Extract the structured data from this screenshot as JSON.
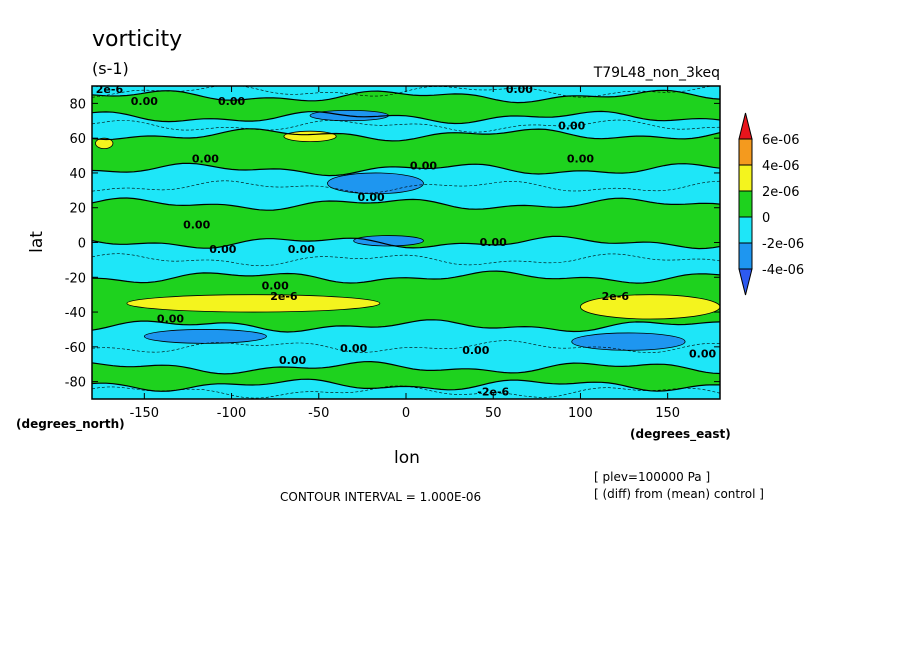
{
  "chart_data": {
    "type": "heatmap",
    "title": "vorticity",
    "units": "(s-1)",
    "experiment": "T79L48_non_3keq",
    "xlabel": "lon",
    "ylabel": "lat",
    "x_units": "(degrees_east)",
    "y_units": "(degrees_north)",
    "xlim": [
      -180,
      180
    ],
    "ylim": [
      -90,
      90
    ],
    "x_ticks": [
      -150,
      -100,
      -50,
      0,
      50,
      100,
      150
    ],
    "y_ticks": [
      80,
      60,
      40,
      20,
      0,
      -20,
      -40,
      -60,
      -80
    ],
    "contour_interval_text": "CONTOUR INTERVAL = 1.000E-06",
    "level_text": "[ plev=100000 Pa ]",
    "diff_text": "[ (diff) from (mean) control ]",
    "colorbar": {
      "labels": [
        "6e-06",
        "4e-06",
        "2e-06",
        "0",
        "-2e-06",
        "-4e-06"
      ],
      "colors": [
        "#e8141c",
        "#f49a1e",
        "#f4f41e",
        "#1ed21e",
        "#1ee6f8",
        "#1e96f0",
        "#2d5af0"
      ]
    },
    "zonal_bands": [
      {
        "lat_min": 84,
        "lat_max": 90,
        "class": "negative",
        "color": "#1ee6f8"
      },
      {
        "lat_min": 72,
        "lat_max": 84,
        "class": "positive",
        "color": "#1ed21e"
      },
      {
        "lat_min": 62,
        "lat_max": 72,
        "class": "negative",
        "color": "#1ee6f8"
      },
      {
        "lat_min": 42,
        "lat_max": 62,
        "class": "positive",
        "color": "#1ed21e"
      },
      {
        "lat_min": 22,
        "lat_max": 42,
        "class": "negative",
        "color": "#1ee6f8"
      },
      {
        "lat_min": 0,
        "lat_max": 22,
        "class": "positive",
        "color": "#1ed21e"
      },
      {
        "lat_min": -20,
        "lat_max": 0,
        "class": "negative",
        "color": "#1ee6f8"
      },
      {
        "lat_min": -48,
        "lat_max": -20,
        "class": "positive",
        "color": "#1ed21e"
      },
      {
        "lat_min": -72,
        "lat_max": -48,
        "class": "negative",
        "color": "#1ee6f8"
      },
      {
        "lat_min": -82,
        "lat_max": -72,
        "class": "positive",
        "color": "#1ed21e"
      },
      {
        "lat_min": -90,
        "lat_max": -82,
        "class": "negative",
        "color": "#1ee6f8"
      }
    ],
    "anomalies": [
      {
        "lon_min": -45,
        "lon_max": 10,
        "lat_min": 28,
        "lat_max": 40,
        "value": "-4e-06",
        "color": "#1e96f0"
      },
      {
        "lon_min": -30,
        "lon_max": 10,
        "lat_min": -2,
        "lat_max": 4,
        "value": "-4e-06",
        "color": "#1e96f0"
      },
      {
        "lon_min": -150,
        "lon_max": -80,
        "lat_min": -58,
        "lat_max": -50,
        "value": "-4e-06",
        "color": "#1e96f0"
      },
      {
        "lon_min": 95,
        "lon_max": 160,
        "lat_min": -62,
        "lat_max": -52,
        "value": "-4e-06",
        "color": "#1e96f0"
      },
      {
        "lon_min": -55,
        "lon_max": -10,
        "lat_min": 70,
        "lat_max": 76,
        "value": "-4e-06",
        "color": "#1e96f0"
      },
      {
        "lon_min": -160,
        "lon_max": -15,
        "lat_min": -40,
        "lat_max": -30,
        "value": "2e-06",
        "color": "#f4f41e"
      },
      {
        "lon_min": 100,
        "lon_max": 180,
        "lat_min": -44,
        "lat_max": -30,
        "value": "2e-06",
        "color": "#f4f41e"
      },
      {
        "lon_min": -178,
        "lon_max": -168,
        "lat_min": 54,
        "lat_max": 60,
        "value": "2e-06",
        "color": "#f4f41e"
      },
      {
        "lon_min": -70,
        "lon_max": -40,
        "lat_min": 58,
        "lat_max": 64,
        "value": "2e-06",
        "color": "#f4f41e"
      }
    ],
    "contour_labels": [
      {
        "text": "2e-6",
        "lon": -170,
        "lat": 86
      },
      {
        "text": "0.00",
        "lon": -150,
        "lat": 79
      },
      {
        "text": "0.00",
        "lon": -100,
        "lat": 79
      },
      {
        "text": "0.00",
        "lon": 65,
        "lat": 86
      },
      {
        "text": "0.00",
        "lon": 95,
        "lat": 65
      },
      {
        "text": "0.00",
        "lon": 100,
        "lat": 46
      },
      {
        "text": "0.00",
        "lon": -115,
        "lat": 46
      },
      {
        "text": "0.00",
        "lon": 10,
        "lat": 42
      },
      {
        "text": "0.00",
        "lon": -20,
        "lat": 24
      },
      {
        "text": "0.00",
        "lon": -120,
        "lat": 8
      },
      {
        "text": "0.00",
        "lon": -105,
        "lat": -6
      },
      {
        "text": "0.00",
        "lon": -60,
        "lat": -6
      },
      {
        "text": "0.00",
        "lon": 50,
        "lat": -2
      },
      {
        "text": "0.00",
        "lon": -75,
        "lat": -27
      },
      {
        "text": "2e-6",
        "lon": -70,
        "lat": -33
      },
      {
        "text": "2e-6",
        "lon": 120,
        "lat": -33
      },
      {
        "text": "0.00",
        "lon": -135,
        "lat": -46
      },
      {
        "text": "0.00",
        "lon": -30,
        "lat": -63
      },
      {
        "text": "0.00",
        "lon": 40,
        "lat": -64
      },
      {
        "text": "0.00",
        "lon": -65,
        "lat": -70
      },
      {
        "text": "0.00",
        "lon": 170,
        "lat": -66
      },
      {
        "text": "-2e-6",
        "lon": 50,
        "lat": -88
      }
    ]
  }
}
